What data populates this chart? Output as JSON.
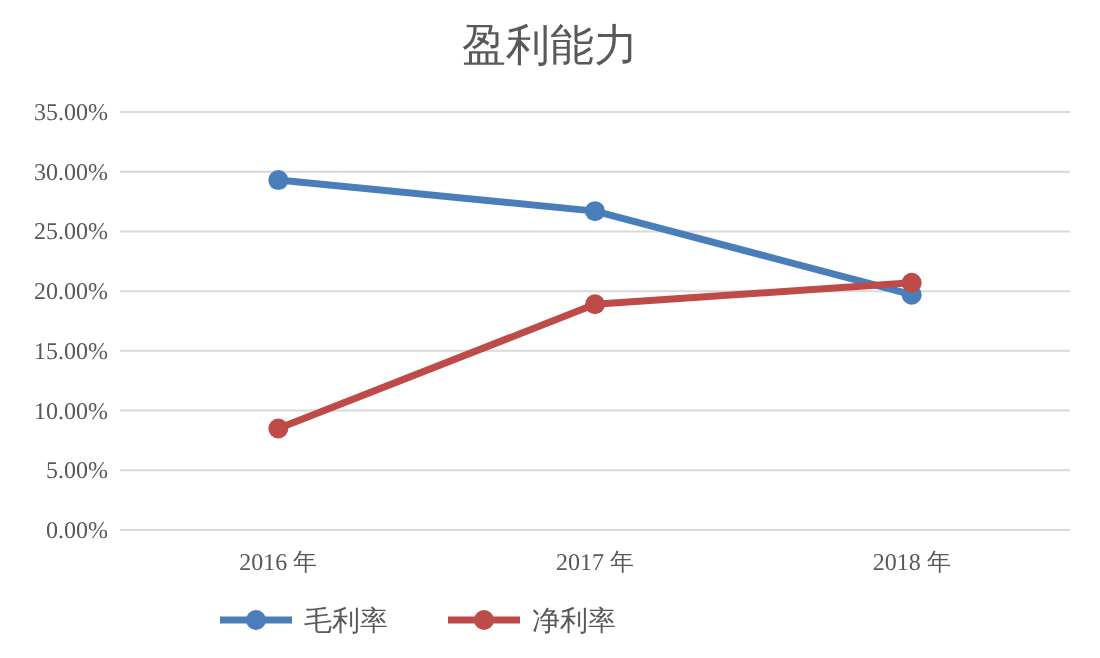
{
  "chart_data": {
    "type": "line",
    "title": "盈利能力",
    "categories": [
      "2016 年",
      "2017 年",
      "2018 年"
    ],
    "series": [
      {
        "name": "毛利率",
        "color": "#4a7ebb",
        "values": [
          29.3,
          26.7,
          19.7
        ]
      },
      {
        "name": "净利率",
        "color": "#be4b48",
        "values": [
          8.5,
          18.9,
          20.7
        ]
      }
    ],
    "ylim": [
      0,
      35
    ],
    "yticks": [
      {
        "value": 0,
        "label": "0.00%"
      },
      {
        "value": 5,
        "label": "5.00%"
      },
      {
        "value": 10,
        "label": "10.00%"
      },
      {
        "value": 15,
        "label": "15.00%"
      },
      {
        "value": 20,
        "label": "20.00%"
      },
      {
        "value": 25,
        "label": "25.00%"
      },
      {
        "value": 30,
        "label": "30.00%"
      },
      {
        "value": 35,
        "label": "35.00%"
      }
    ],
    "grid": "y",
    "legend": "bottom",
    "marker": "circle",
    "line_style": "solid"
  }
}
